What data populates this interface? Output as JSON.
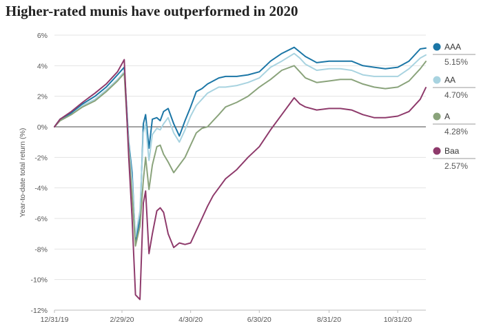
{
  "chart_data": {
    "type": "line",
    "title": "Higher-rated munis have outperformed in 2020",
    "xlabel": "",
    "ylabel": "Year-to-date total return (%)",
    "x_ticks": [
      "12/31/19",
      "2/29/20",
      "4/30/20",
      "6/30/20",
      "8/31/20",
      "10/31/20"
    ],
    "xlim": [
      "2019-12-31",
      "2020-11-25"
    ],
    "ylim": [
      -12,
      6
    ],
    "y_ticks": [
      6,
      4,
      2,
      0,
      -2,
      -4,
      -6,
      -8,
      -10,
      -12
    ],
    "y_tick_labels": [
      "6%",
      "4%",
      "2%",
      "0%",
      "-2%",
      "-4%",
      "-6%",
      "-8%",
      "-10%",
      "-12%"
    ],
    "grid": true,
    "legend_position": "right",
    "x": [
      "2019-12-31",
      "2020-01-05",
      "2020-01-15",
      "2020-01-25",
      "2020-02-05",
      "2020-02-15",
      "2020-02-25",
      "2020-03-02",
      "2020-03-06",
      "2020-03-09",
      "2020-03-12",
      "2020-03-16",
      "2020-03-19",
      "2020-03-21",
      "2020-03-24",
      "2020-03-27",
      "2020-03-31",
      "2020-04-03",
      "2020-04-06",
      "2020-04-10",
      "2020-04-15",
      "2020-04-20",
      "2020-04-25",
      "2020-04-30",
      "2020-05-05",
      "2020-05-10",
      "2020-05-15",
      "2020-05-20",
      "2020-05-25",
      "2020-05-31",
      "2020-06-10",
      "2020-06-20",
      "2020-06-30",
      "2020-07-10",
      "2020-07-20",
      "2020-07-31",
      "2020-08-05",
      "2020-08-10",
      "2020-08-20",
      "2020-08-31",
      "2020-09-10",
      "2020-09-20",
      "2020-09-30",
      "2020-10-10",
      "2020-10-20",
      "2020-10-31",
      "2020-11-10",
      "2020-11-20",
      "2020-11-25"
    ],
    "series": [
      {
        "name": "AAA",
        "color": "#1b76a6",
        "final_label": "5.15%",
        "values": [
          0,
          0.5,
          0.9,
          1.5,
          2.0,
          2.6,
          3.4,
          3.9,
          -1.0,
          -3.0,
          -7.5,
          -6.0,
          0.2,
          0.8,
          -1.4,
          0.5,
          0.6,
          0.4,
          1.0,
          1.2,
          0.2,
          -0.6,
          0.4,
          1.3,
          2.3,
          2.5,
          2.8,
          3.0,
          3.2,
          3.3,
          3.3,
          3.4,
          3.6,
          4.3,
          4.8,
          5.2,
          4.9,
          4.6,
          4.2,
          4.3,
          4.3,
          4.3,
          4.0,
          3.9,
          3.8,
          3.9,
          4.3,
          5.1,
          5.15
        ]
      },
      {
        "name": "AA",
        "color": "#a8d3e0",
        "final_label": "4.70%",
        "values": [
          0,
          0.4,
          0.8,
          1.4,
          1.8,
          2.4,
          3.1,
          3.6,
          -1.2,
          -3.5,
          -7.2,
          -5.5,
          -0.4,
          0.2,
          -2.2,
          -0.5,
          -0.1,
          -0.2,
          0.2,
          0.6,
          -0.4,
          -1.0,
          -0.2,
          0.7,
          1.4,
          1.8,
          2.2,
          2.4,
          2.6,
          2.6,
          2.7,
          2.9,
          3.2,
          3.9,
          4.3,
          4.8,
          4.5,
          4.1,
          3.7,
          3.8,
          3.8,
          3.7,
          3.4,
          3.3,
          3.3,
          3.3,
          3.8,
          4.5,
          4.7
        ]
      },
      {
        "name": "A",
        "color": "#8aa37b",
        "final_label": "4.28%",
        "values": [
          0,
          0.4,
          0.8,
          1.3,
          1.7,
          2.3,
          3.0,
          3.5,
          -1.5,
          -4.5,
          -7.8,
          -6.5,
          -3.5,
          -2.0,
          -4.1,
          -2.5,
          -1.3,
          -1.2,
          -1.8,
          -2.3,
          -3.0,
          -2.5,
          -2.0,
          -1.2,
          -0.4,
          -0.1,
          0,
          0.4,
          0.8,
          1.3,
          1.6,
          2.0,
          2.6,
          3.1,
          3.7,
          4.0,
          3.6,
          3.2,
          2.9,
          3.0,
          3.1,
          3.1,
          2.8,
          2.6,
          2.5,
          2.6,
          3.0,
          3.8,
          4.28
        ]
      },
      {
        "name": "Baa",
        "color": "#8e3a6b",
        "final_label": "2.57%",
        "values": [
          0,
          0.5,
          1.0,
          1.6,
          2.2,
          2.8,
          3.6,
          4.4,
          -2.0,
          -6.0,
          -11.0,
          -11.3,
          -5.0,
          -4.2,
          -8.3,
          -7.0,
          -5.5,
          -5.3,
          -5.6,
          -7.0,
          -7.9,
          -7.6,
          -7.7,
          -7.6,
          -6.8,
          -6.0,
          -5.2,
          -4.5,
          -4.0,
          -3.4,
          -2.8,
          -2.0,
          -1.3,
          -0.2,
          0.8,
          1.9,
          1.5,
          1.3,
          1.1,
          1.2,
          1.2,
          1.1,
          0.8,
          0.6,
          0.6,
          0.7,
          1.0,
          1.8,
          2.57
        ]
      }
    ]
  }
}
